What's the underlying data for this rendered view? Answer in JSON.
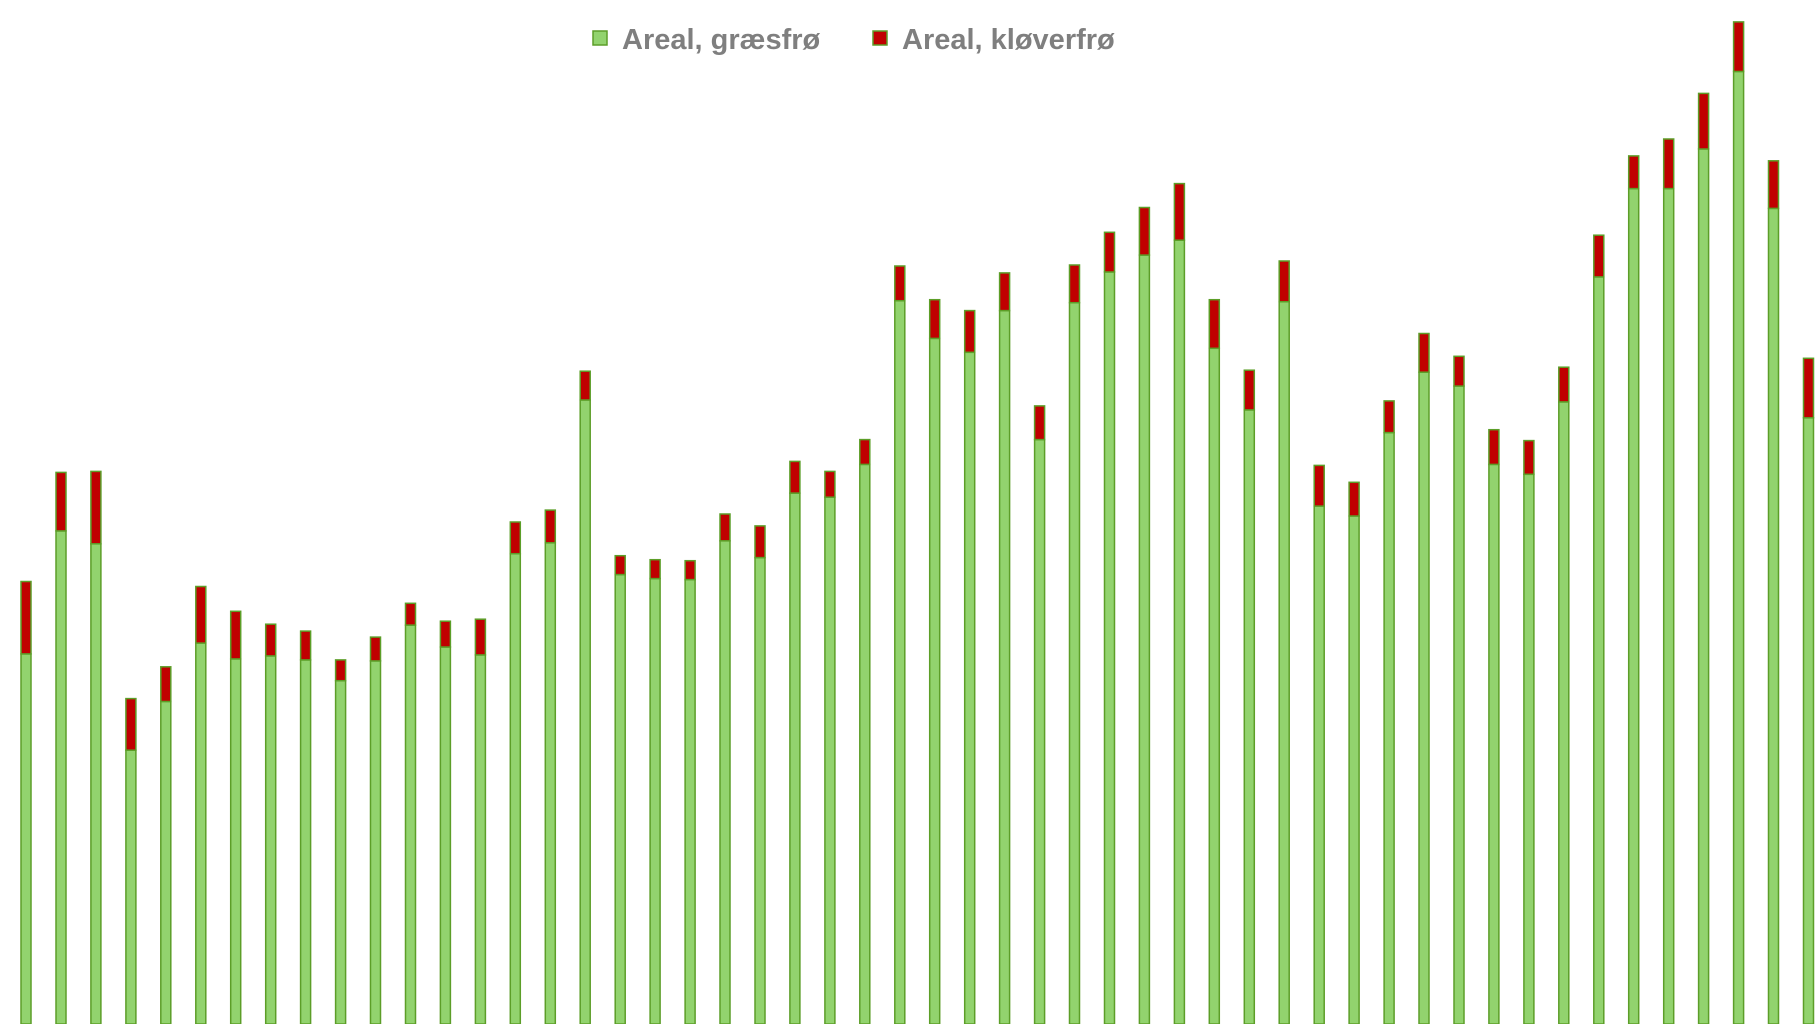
{
  "chart_data": {
    "type": "bar",
    "stacked": true,
    "title": "",
    "xlabel": "",
    "ylabel": "",
    "ylim": [
      0,
      1020
    ],
    "grid": false,
    "legend_position": "top-center",
    "series": [
      {
        "name": "Areal, græsfrø",
        "color": "#92d36e",
        "stroke": "#5c9e28",
        "values": [
          373,
          497,
          484,
          276,
          325,
          384,
          368,
          371,
          367,
          346,
          366,
          402,
          380,
          372,
          474,
          485,
          629,
          453,
          449,
          448,
          487,
          470,
          535,
          531,
          564,
          729,
          691,
          677,
          719,
          589,
          727,
          758,
          775,
          790,
          681,
          619,
          728,
          522,
          512,
          596,
          657,
          643,
          564,
          554,
          627,
          753,
          842,
          842,
          882,
          960,
          822,
          611
        ]
      },
      {
        "name": "Areal, kløverfrø",
        "color": "#c00000",
        "stroke": "#5c9e28",
        "values": [
          73,
          59,
          73,
          52,
          35,
          57,
          48,
          32,
          29,
          21,
          24,
          22,
          26,
          36,
          32,
          33,
          29,
          19,
          19,
          19,
          27,
          32,
          32,
          26,
          25,
          35,
          39,
          42,
          38,
          34,
          38,
          40,
          48,
          57,
          49,
          40,
          41,
          41,
          34,
          32,
          39,
          30,
          35,
          34,
          35,
          42,
          33,
          50,
          56,
          50,
          48,
          60
        ]
      }
    ]
  }
}
